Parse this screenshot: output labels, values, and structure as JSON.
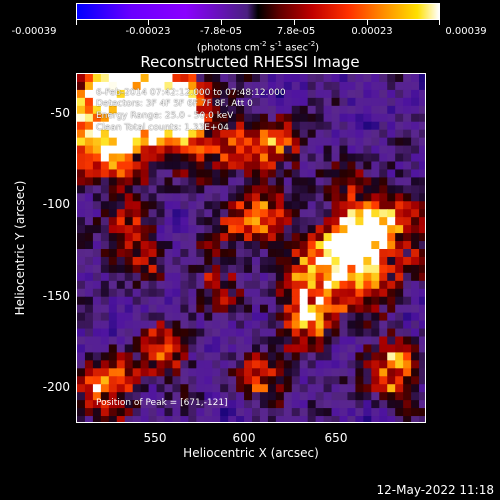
{
  "colorbar": {
    "gradient_colors": [
      "#0000ff",
      "#8a00ff",
      "#000000",
      "#c00000",
      "#ff9000",
      "#ffffff"
    ],
    "tick_labels": [
      "-0.00039",
      "-0.00023",
      "-7.8e-05",
      "7.8e-05",
      "0.00023",
      "0.00039"
    ],
    "tick_values": [
      -0.00039,
      -0.00023,
      -7.8e-05,
      7.8e-05,
      0.00023,
      0.00039
    ],
    "units_prefix": "(photons cm",
    "units_exp1": "-2",
    "units_mid": " s",
    "units_exp2": "-1",
    "units_mid2": " asec",
    "units_exp3": "-2",
    "units_suffix": ")"
  },
  "title": "Reconstructed RHESSI Image",
  "info": {
    "time_range": "6-Feb-2014 07:42:12.000 to 07:48:12.000",
    "detectors": "Detectors: 3F 4F 5F 6F 7F 8F, Att 0",
    "energy_range": "Energy Range: 25.0 - 50.0 keV",
    "clean": "Clean    Total counts: 1.33E+04",
    "peak": "Position of Peak = [671,-121]"
  },
  "axes": {
    "xlabel": "Heliocentric X (arcsec)",
    "ylabel": "Heliocentric Y (arcsec)",
    "xticks": [
      "550",
      "600",
      "650"
    ],
    "yticks": [
      "-50",
      "-100",
      "-150",
      "-200"
    ],
    "xrange": [
      505,
      695
    ],
    "yrange": [
      -220,
      -30
    ]
  },
  "footer": {
    "date": "12-May-2022 11:18"
  }
}
